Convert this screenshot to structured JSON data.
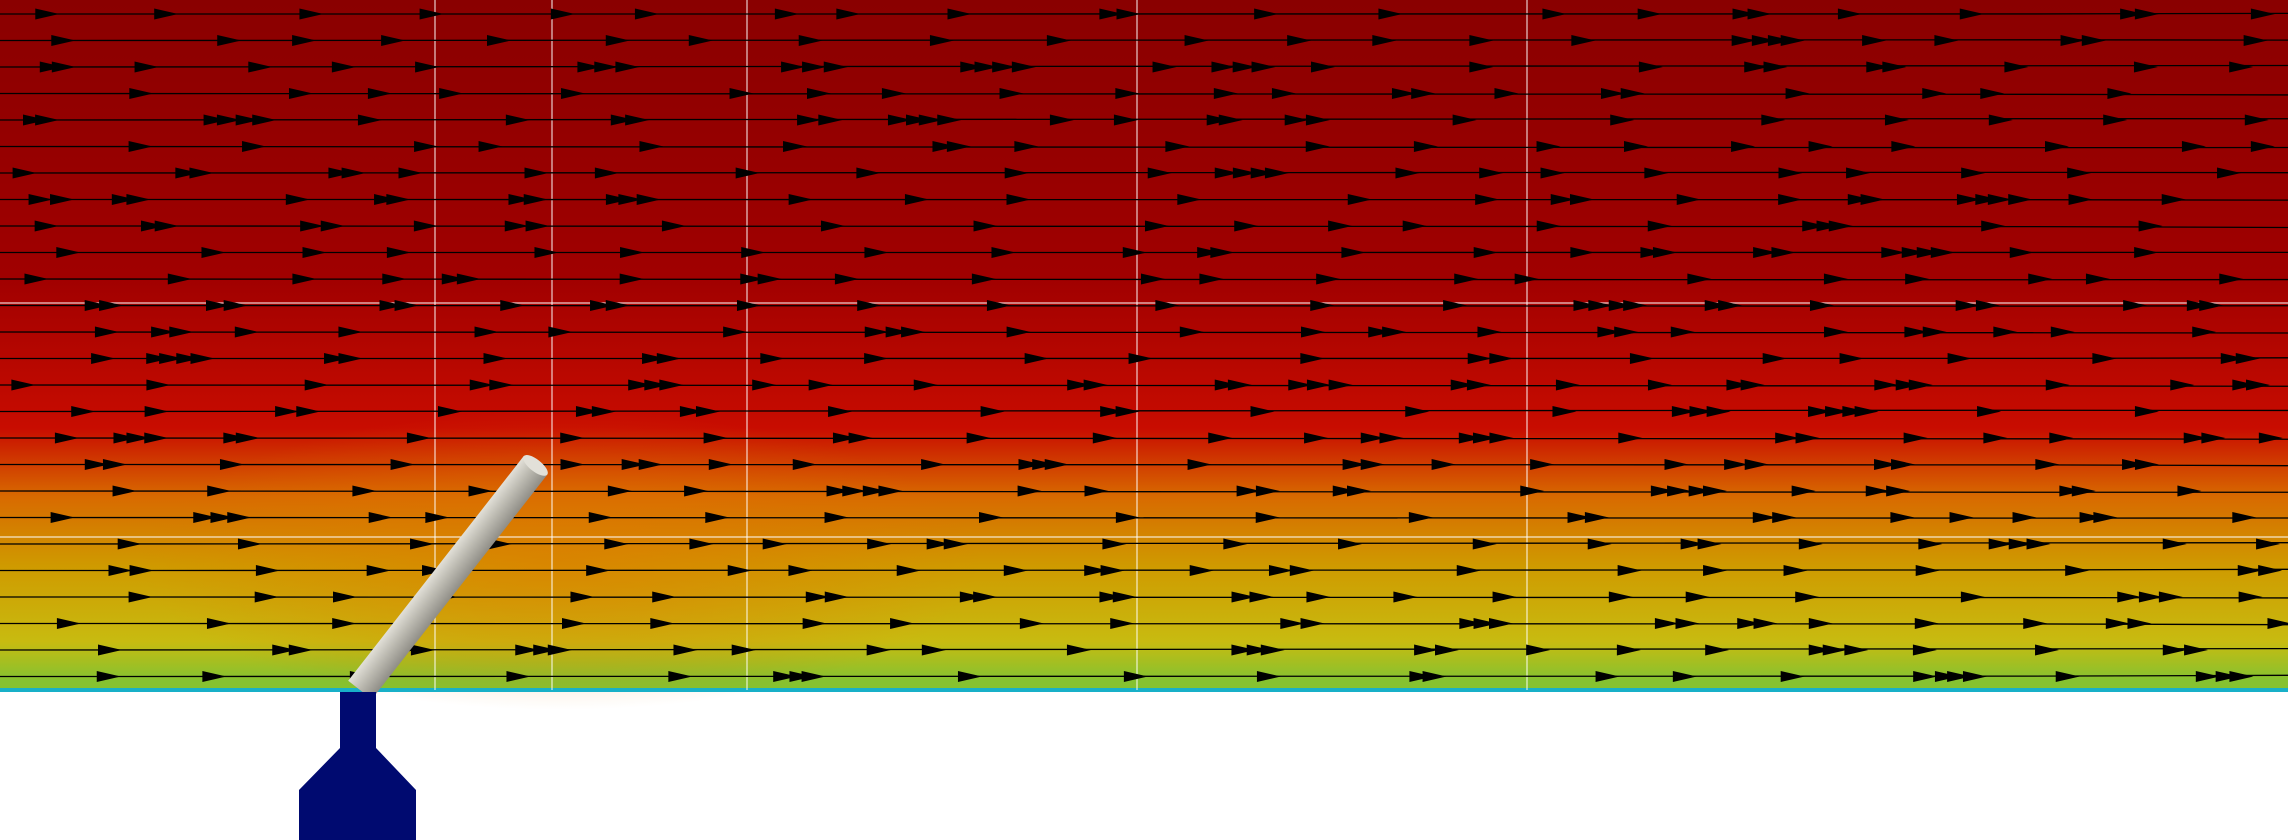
{
  "scene": {
    "colors": {
      "background": "#ffffff",
      "field_top": "#8a0000",
      "field_mid_dark": "#a00000",
      "field_mid": "#c80c00",
      "field_orange": "#d86a00",
      "field_amber": "#cf9a00",
      "field_yellow": "#c8bb10",
      "field_green": "#86c230",
      "wall_line": "#18b0c8",
      "grid_line": "#ffffff",
      "streamline": "#000000",
      "arrow": "#000000",
      "rod_light": "#e2e0d8",
      "rod_mid": "#bdbbb2",
      "rod_dark": "#8f8d86",
      "mount": "#000a70"
    },
    "icons": [
      "streamline-arrow-icon"
    ],
    "objects": [
      "flow-field",
      "streamlines",
      "grid-lines",
      "inclined-rod",
      "rod-mount"
    ]
  }
}
